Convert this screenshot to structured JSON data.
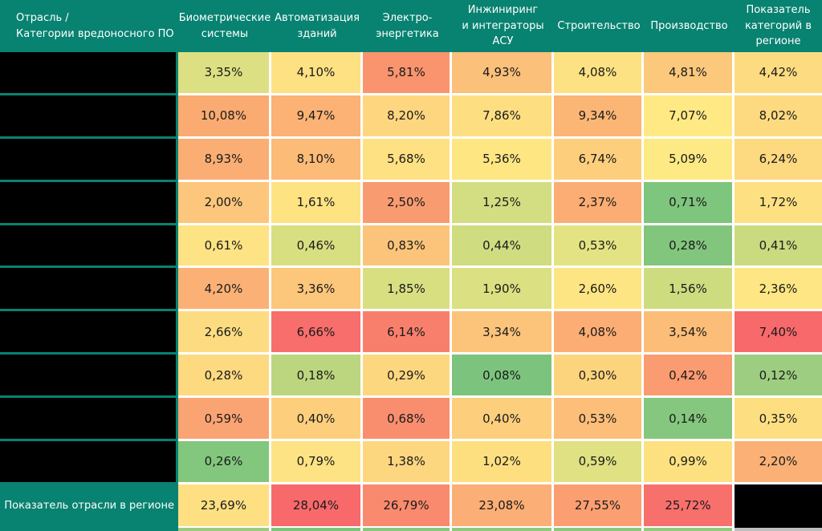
{
  "colors": {
    "header_bg": "#088271",
    "grid_line": "#FFFFFF",
    "redacted_black": "#000000",
    "cell_text": "#1A1A1A",
    "header_text": "#FFFFFF",
    "bottom_right_gray": "#BFBFBF"
  },
  "table": {
    "corner_header": "Отрасль /\nКатегории вредоносного ПО",
    "columns": [
      "Биометрические\nсистемы",
      "Автоматизация\nзданий",
      "Электро-\nэнергетика",
      "Инжиниринг\nи интеграторы\nАСУ",
      "Строительство",
      "Производство",
      "Показатель\nкатегорий в\nрегионе"
    ],
    "rows": [
      {
        "redacted_label": true,
        "cells": [
          {
            "t": "3,35%",
            "c": "#DCE082"
          },
          {
            "t": "4,10%",
            "c": "#FEE183"
          },
          {
            "t": "5,81%",
            "c": "#F9946F"
          },
          {
            "t": "4,93%",
            "c": "#FBC07A"
          },
          {
            "t": "4,08%",
            "c": "#FDE283"
          },
          {
            "t": "4,81%",
            "c": "#FCC87C"
          },
          {
            "t": "4,42%",
            "c": "#FDDC81"
          }
        ]
      },
      {
        "redacted_label": true,
        "cells": [
          {
            "t": "10,08%",
            "c": "#FAAB72"
          },
          {
            "t": "9,47%",
            "c": "#FBB274"
          },
          {
            "t": "8,20%",
            "c": "#FDD67F"
          },
          {
            "t": "7,86%",
            "c": "#FDDE81"
          },
          {
            "t": "9,34%",
            "c": "#FBB575"
          },
          {
            "t": "7,07%",
            "c": "#FEE984"
          },
          {
            "t": "8,02%",
            "c": "#FDDA80"
          }
        ]
      },
      {
        "redacted_label": true,
        "cells": [
          {
            "t": "8,93%",
            "c": "#FBAE73"
          },
          {
            "t": "8,10%",
            "c": "#FCBB77"
          },
          {
            "t": "5,68%",
            "c": "#FDE182"
          },
          {
            "t": "5,36%",
            "c": "#FEE683"
          },
          {
            "t": "6,74%",
            "c": "#FDCF7D"
          },
          {
            "t": "5,09%",
            "c": "#FEEA84"
          },
          {
            "t": "6,24%",
            "c": "#FDD980"
          }
        ]
      },
      {
        "redacted_label": true,
        "cells": [
          {
            "t": "2,00%",
            "c": "#FCC77C"
          },
          {
            "t": "1,61%",
            "c": "#FDE382"
          },
          {
            "t": "2,50%",
            "c": "#F99B71"
          },
          {
            "t": "1,25%",
            "c": "#D3DD81"
          },
          {
            "t": "2,37%",
            "c": "#FBAD74"
          },
          {
            "t": "0,71%",
            "c": "#7EC57D"
          },
          {
            "t": "1,72%",
            "c": "#FDE081"
          }
        ]
      },
      {
        "redacted_label": true,
        "cells": [
          {
            "t": "0,61%",
            "c": "#FDE383"
          },
          {
            "t": "0,46%",
            "c": "#D8DF81"
          },
          {
            "t": "0,83%",
            "c": "#FCC47A"
          },
          {
            "t": "0,44%",
            "c": "#D0DC80"
          },
          {
            "t": "0,53%",
            "c": "#E4E383"
          },
          {
            "t": "0,28%",
            "c": "#82C67E"
          },
          {
            "t": "0,41%",
            "c": "#C9DA7F"
          }
        ]
      },
      {
        "redacted_label": true,
        "cells": [
          {
            "t": "4,20%",
            "c": "#FBB175"
          },
          {
            "t": "3,36%",
            "c": "#FCC67B"
          },
          {
            "t": "1,85%",
            "c": "#D7DF81"
          },
          {
            "t": "1,90%",
            "c": "#DBE082"
          },
          {
            "t": "2,60%",
            "c": "#FEE583"
          },
          {
            "t": "1,56%",
            "c": "#CEDC80"
          },
          {
            "t": "2,36%",
            "c": "#FDE683"
          }
        ]
      },
      {
        "redacted_label": true,
        "cells": [
          {
            "t": "2,66%",
            "c": "#FDDC81"
          },
          {
            "t": "6,66%",
            "c": "#F86E6C"
          },
          {
            "t": "6,14%",
            "c": "#F97F6D"
          },
          {
            "t": "3,34%",
            "c": "#FCC37A"
          },
          {
            "t": "4,08%",
            "c": "#FBAD74"
          },
          {
            "t": "3,54%",
            "c": "#FCBD78"
          },
          {
            "t": "7,40%",
            "c": "#F8696B"
          }
        ]
      },
      {
        "redacted_label": true,
        "cells": [
          {
            "t": "0,28%",
            "c": "#FDD980"
          },
          {
            "t": "0,18%",
            "c": "#BCD67F"
          },
          {
            "t": "0,29%",
            "c": "#FDD77F"
          },
          {
            "t": "0,08%",
            "c": "#7CC47D"
          },
          {
            "t": "0,30%",
            "c": "#FDD47E"
          },
          {
            "t": "0,42%",
            "c": "#FA9B71"
          },
          {
            "t": "0,12%",
            "c": "#9DCD80"
          }
        ]
      },
      {
        "redacted_label": true,
        "cells": [
          {
            "t": "0,59%",
            "c": "#FBA473"
          },
          {
            "t": "0,40%",
            "c": "#FDCF7D"
          },
          {
            "t": "0,68%",
            "c": "#F98E6F"
          },
          {
            "t": "0,40%",
            "c": "#FDCF7D"
          },
          {
            "t": "0,53%",
            "c": "#FCBE79"
          },
          {
            "t": "0,14%",
            "c": "#85C77E"
          },
          {
            "t": "0,35%",
            "c": "#FDDF82"
          }
        ]
      },
      {
        "redacted_label": true,
        "cells": [
          {
            "t": "0,26%",
            "c": "#83C67E"
          },
          {
            "t": "0,79%",
            "c": "#FDE383"
          },
          {
            "t": "1,38%",
            "c": "#FDD680"
          },
          {
            "t": "1,02%",
            "c": "#FDDF80"
          },
          {
            "t": "0,59%",
            "c": "#DFE182"
          },
          {
            "t": "0,99%",
            "c": "#FDE181"
          },
          {
            "t": "2,20%",
            "c": "#FBB175"
          }
        ]
      }
    ],
    "footer": {
      "label": "Показатель отрасли в регионе",
      "cells": [
        {
          "t": "23,69%",
          "c": "#FEE083"
        },
        {
          "t": "28,04%",
          "c": "#F8696B"
        },
        {
          "t": "26,79%",
          "c": "#F98A6E"
        },
        {
          "t": "23,08%",
          "c": "#FBAE75"
        },
        {
          "t": "27,55%",
          "c": "#FB9F72"
        },
        {
          "t": "25,72%",
          "c": "#F8706C"
        }
      ],
      "last_cell_redacted": true
    },
    "bottom_partial_row": [
      "#088271",
      "#9CCC80",
      "#7CC57D",
      "#88C87E",
      "#90CA7F",
      "#8CC87E",
      "#92CA7F",
      "#BFBFBF"
    ]
  },
  "chart_data": {
    "type": "heatmap",
    "title": "",
    "corner_label": "Отрасль / Категории вредоносного ПО",
    "x_labels": [
      "Биометрические системы",
      "Автоматизация зданий",
      "Электро-энергетика",
      "Инжиниринг и интеграторы АСУ",
      "Строительство",
      "Производство",
      "Показатель категорий в регионе"
    ],
    "y_labels": [
      "",
      "",
      "",
      "",
      "",
      "",
      "",
      "",
      "",
      "",
      "Показатель отрасли в регионе"
    ],
    "y_labels_redacted": [
      true,
      true,
      true,
      true,
      true,
      true,
      true,
      true,
      true,
      true,
      false
    ],
    "values": [
      [
        3.35,
        4.1,
        5.81,
        4.93,
        4.08,
        4.81,
        4.42
      ],
      [
        10.08,
        9.47,
        8.2,
        7.86,
        9.34,
        7.07,
        8.02
      ],
      [
        8.93,
        8.1,
        5.68,
        5.36,
        6.74,
        5.09,
        6.24
      ],
      [
        2.0,
        1.61,
        2.5,
        1.25,
        2.37,
        0.71,
        1.72
      ],
      [
        0.61,
        0.46,
        0.83,
        0.44,
        0.53,
        0.28,
        0.41
      ],
      [
        4.2,
        3.36,
        1.85,
        1.9,
        2.6,
        1.56,
        2.36
      ],
      [
        2.66,
        6.66,
        6.14,
        3.34,
        4.08,
        3.54,
        7.4
      ],
      [
        0.28,
        0.18,
        0.29,
        0.08,
        0.3,
        0.42,
        0.12
      ],
      [
        0.59,
        0.4,
        0.68,
        0.4,
        0.53,
        0.14,
        0.35
      ],
      [
        0.26,
        0.79,
        1.38,
        1.02,
        0.59,
        0.99,
        2.2
      ],
      [
        23.69,
        28.04,
        26.79,
        23.08,
        27.55,
        25.72,
        null
      ]
    ],
    "value_format": "percent, comma decimal separator",
    "colorscale": {
      "min": "#63BE7B",
      "mid": "#FFEB84",
      "max": "#F8696B"
    },
    "legend": "none",
    "grid": "white gridlines between cells"
  }
}
